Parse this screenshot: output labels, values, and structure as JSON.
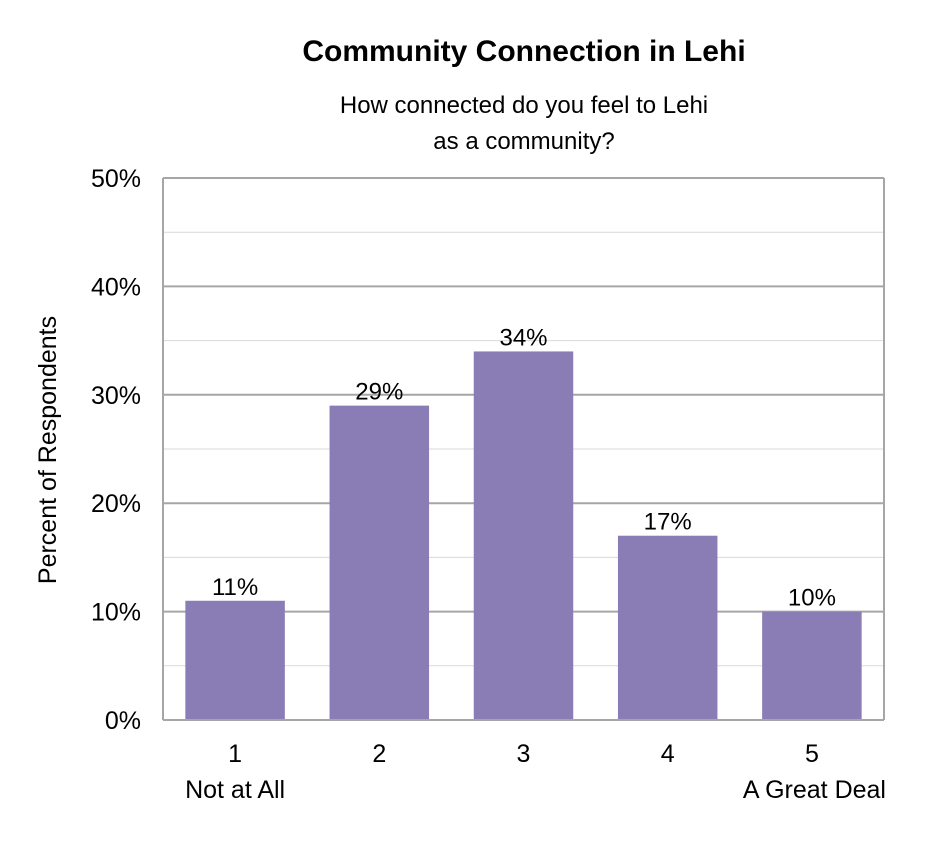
{
  "chart_data": {
    "type": "bar",
    "title": "Community Connection in Lehi",
    "subtitle": [
      "How connected do you feel to Lehi",
      "as a community?"
    ],
    "ylabel": "Percent of Respondents",
    "xlabel": "",
    "categories": [
      "1",
      "2",
      "3",
      "4",
      "5"
    ],
    "category_sublabels": [
      "Not at All",
      "",
      "",
      "",
      "A Great Deal"
    ],
    "values": [
      11,
      29,
      34,
      17,
      10
    ],
    "data_labels": [
      "11%",
      "29%",
      "34%",
      "17%",
      "10%"
    ],
    "ylim": [
      0,
      50
    ],
    "y_ticks": [
      0,
      10,
      20,
      30,
      40,
      50
    ],
    "y_tick_labels": [
      "0%",
      "10%",
      "20%",
      "30%",
      "40%",
      "50%"
    ],
    "grid": true,
    "minor_grid": true,
    "legend": "none",
    "bar_color": "#8a7db6",
    "grid_color": "#a6a6a6",
    "minor_grid_color": "#d9d9d9"
  }
}
